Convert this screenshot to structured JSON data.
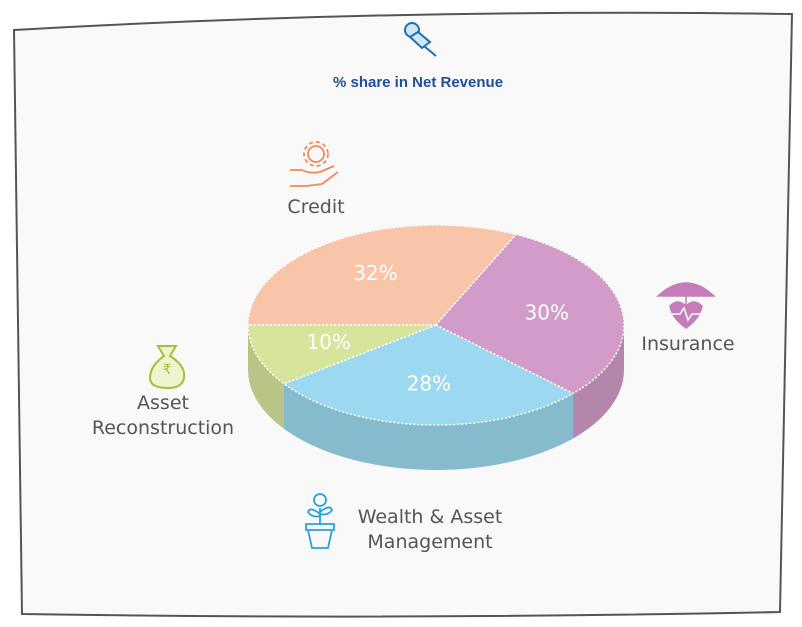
{
  "chart_data": {
    "type": "pie3d",
    "title": "% share in Net Revenue",
    "categories": [
      "Credit",
      "Insurance",
      "Wealth & Asset Management",
      "Asset Reconstruction"
    ],
    "values": [
      32,
      30,
      28,
      10
    ],
    "value_labels": [
      "32%",
      "30%",
      "28%",
      "10%"
    ],
    "colors": [
      "#f9c5a9",
      "#d39cc8",
      "#9cd9f0",
      "#d7e49c"
    ]
  }
}
